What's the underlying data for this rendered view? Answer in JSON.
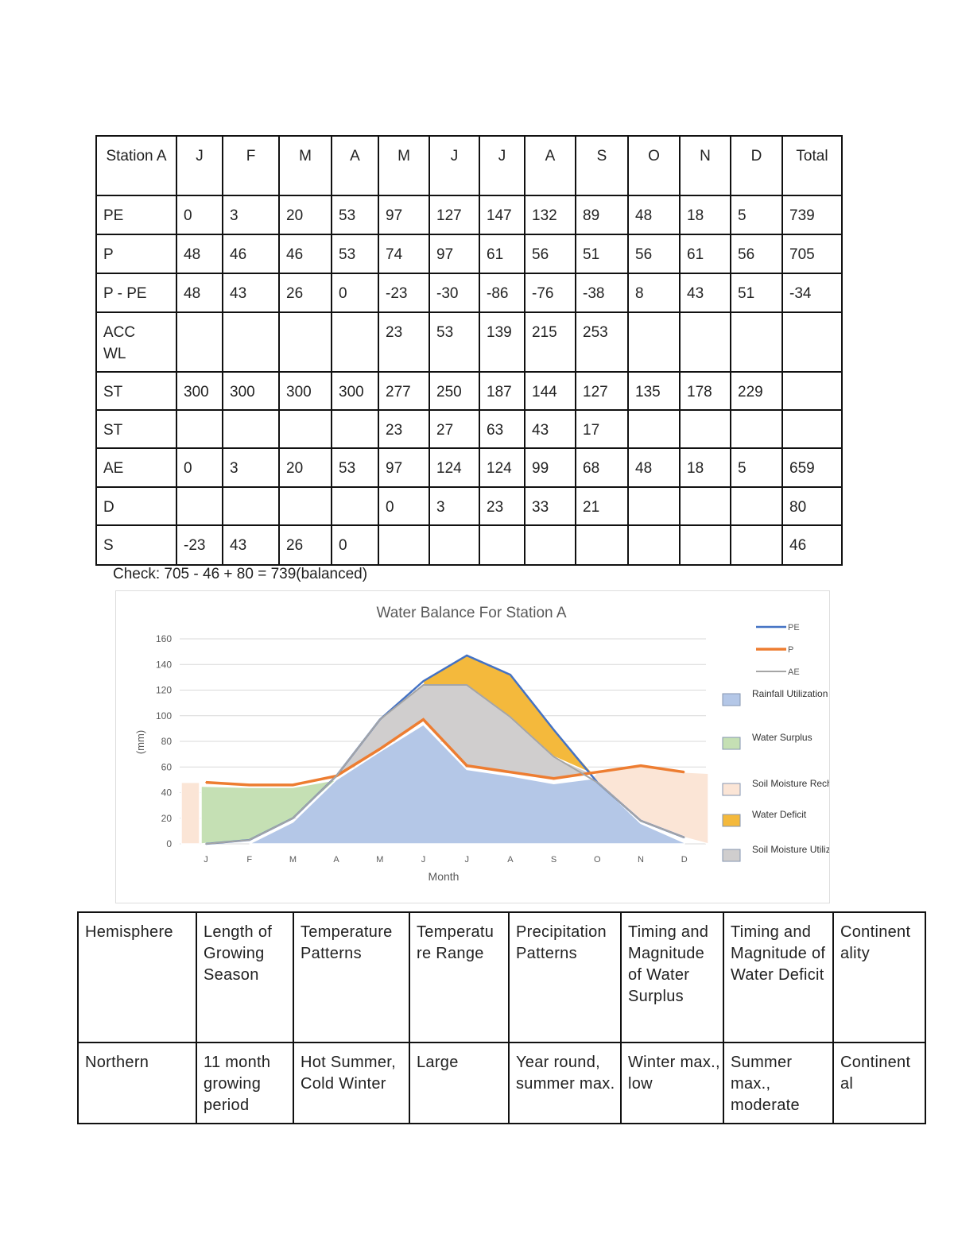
{
  "station_table": {
    "header": [
      "Station A",
      "J",
      "F",
      "M",
      "A",
      "M",
      "J",
      "J",
      "A",
      "S",
      "O",
      "N",
      "D",
      "Total"
    ],
    "rows": [
      [
        "PE",
        "0",
        "3",
        "20",
        "53",
        "97",
        "127",
        "147",
        "132",
        "89",
        "48",
        "18",
        "5",
        "739"
      ],
      [
        "P",
        "48",
        "46",
        "46",
        "53",
        "74",
        "97",
        "61",
        "56",
        "51",
        "56",
        "61",
        "56",
        "705"
      ],
      [
        "P - PE",
        "48",
        "43",
        "26",
        "0",
        "-23",
        "-30",
        "-86",
        "-76",
        "-38",
        "8",
        "43",
        "51",
        "-34"
      ],
      [
        "ACC WL",
        "",
        "",
        "",
        "",
        "23",
        "53",
        "139",
        "215",
        "253",
        "",
        "",
        "",
        ""
      ],
      [
        "ST",
        "300",
        "300",
        "300",
        "300",
        "277",
        "250",
        "187",
        "144",
        "127",
        "135",
        "178",
        "229",
        ""
      ],
      [
        "ST",
        "",
        "",
        "",
        "",
        "23",
        "27",
        "63",
        "43",
        "17",
        "",
        "",
        "",
        ""
      ],
      [
        "AE",
        "0",
        "3",
        "20",
        "53",
        "97",
        "124",
        "124",
        "99",
        "68",
        "48",
        "18",
        "5",
        "659"
      ],
      [
        "D",
        "",
        "",
        "",
        "",
        "0",
        "3",
        "23",
        "33",
        "21",
        "",
        "",
        "",
        "80"
      ],
      [
        "S",
        "-23",
        "43",
        "26",
        "0",
        "",
        "",
        "",
        "",
        "",
        "",
        "",
        "",
        "46"
      ]
    ]
  },
  "check_text": "Check: 705 - 46 + 80 = 739(balanced)",
  "chart_data": {
    "type": "area",
    "title": "Water Balance For Station A",
    "xlabel": "Month",
    "ylabel": "(mm)",
    "categories": [
      "J",
      "F",
      "M",
      "A",
      "M",
      "J",
      "J",
      "A",
      "S",
      "O",
      "N",
      "D"
    ],
    "ylim": [
      0,
      160
    ],
    "yticks": [
      0,
      20,
      40,
      60,
      80,
      100,
      120,
      140,
      160
    ],
    "grid": true,
    "legend_position": "right",
    "series": [
      {
        "name": "PE",
        "kind": "line",
        "color": "#4472c4",
        "values": [
          0,
          3,
          20,
          53,
          97,
          127,
          147,
          132,
          89,
          48,
          18,
          5
        ]
      },
      {
        "name": "P",
        "kind": "line",
        "color": "#ed7d31",
        "values": [
          48,
          46,
          46,
          53,
          74,
          97,
          61,
          56,
          51,
          56,
          61,
          56
        ]
      },
      {
        "name": "AE",
        "kind": "line",
        "color": "#a5a5a5",
        "values": [
          0,
          3,
          20,
          53,
          97,
          124,
          124,
          99,
          68,
          48,
          18,
          5
        ]
      }
    ],
    "areas": [
      {
        "name": "Rainfall Utilization",
        "color": "#b4c7e7"
      },
      {
        "name": "Water Surplus",
        "color": "#c5e0b4"
      },
      {
        "name": "Soil Moisture Recharge",
        "color": "#fbe5d6"
      },
      {
        "name": "Water Deficit",
        "color": "#f4b93c"
      },
      {
        "name": "Soil Moisture Utilization",
        "color": "#d0cece"
      }
    ]
  },
  "climate_table": {
    "header": [
      "Hemisphere",
      "Length of Growing Season",
      "Temperature Patterns",
      "Temperatu re Range",
      "Precipitation Patterns",
      "Timing and Magnitude of Water Surplus",
      "Timing and Magnitude of Water Deficit",
      "Continent ality"
    ],
    "row": [
      "Northern",
      "11 month growing period",
      "Hot Summer, Cold Winter",
      "Large",
      "Year round, summer max.",
      "Winter max., low",
      "Summer max., moderate",
      "Continent al"
    ]
  }
}
